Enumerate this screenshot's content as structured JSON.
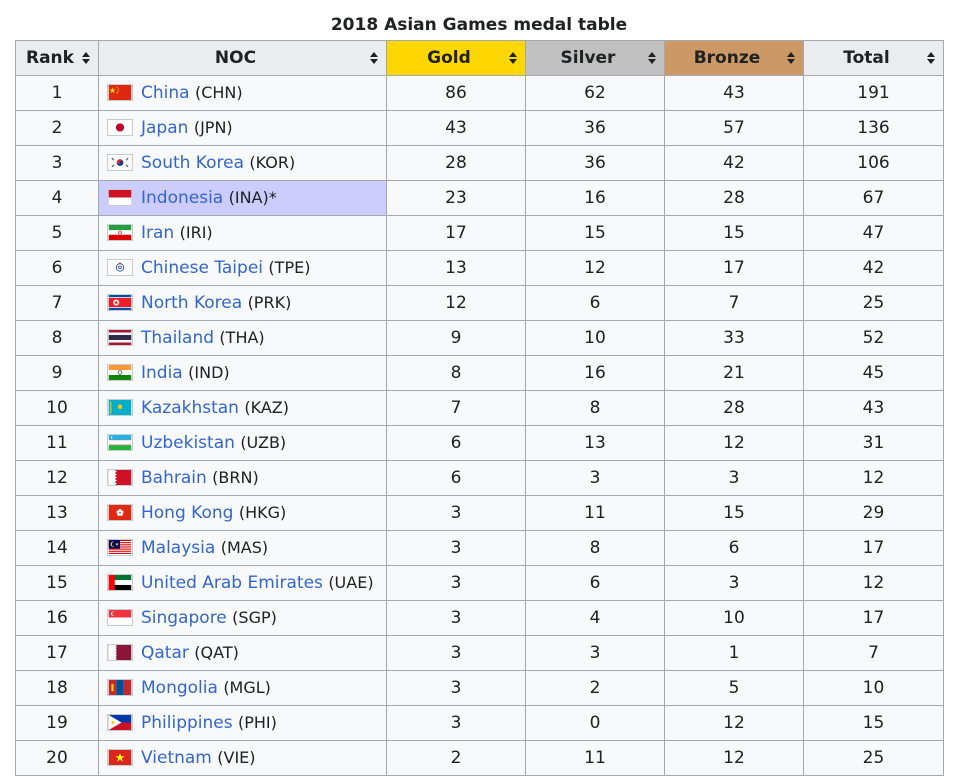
{
  "caption": "2018 Asian Games medal table",
  "headers": {
    "rank": "Rank",
    "noc": "NOC",
    "gold": "Gold",
    "silver": "Silver",
    "bronze": "Bronze",
    "total": "Total"
  },
  "colors": {
    "gold": "#ffd700",
    "silver": "#c0c0c0",
    "bronze": "#cc9966",
    "host_highlight": "#ccccff",
    "link": "#3366cc"
  },
  "rows": [
    {
      "rank": "1",
      "name": "China",
      "code": "(CHN)",
      "gold": "86",
      "silver": "62",
      "bronze": "43",
      "total": "191",
      "flag": "china-flag-icon"
    },
    {
      "rank": "2",
      "name": "Japan",
      "code": "(JPN)",
      "gold": "43",
      "silver": "36",
      "bronze": "57",
      "total": "136",
      "flag": "japan-flag-icon"
    },
    {
      "rank": "3",
      "name": "South Korea",
      "code": "(KOR)",
      "gold": "28",
      "silver": "36",
      "bronze": "42",
      "total": "106",
      "flag": "south-korea-flag-icon"
    },
    {
      "rank": "4",
      "name": "Indonesia",
      "code": "(INA)*",
      "gold": "23",
      "silver": "16",
      "bronze": "28",
      "total": "67",
      "flag": "indonesia-flag-icon",
      "host": true
    },
    {
      "rank": "5",
      "name": "Iran",
      "code": "(IRI)",
      "gold": "17",
      "silver": "15",
      "bronze": "15",
      "total": "47",
      "flag": "iran-flag-icon"
    },
    {
      "rank": "6",
      "name": "Chinese Taipei",
      "code": "(TPE)",
      "gold": "13",
      "silver": "12",
      "bronze": "17",
      "total": "42",
      "flag": "chinese-taipei-flag-icon"
    },
    {
      "rank": "7",
      "name": "North Korea",
      "code": "(PRK)",
      "gold": "12",
      "silver": "6",
      "bronze": "7",
      "total": "25",
      "flag": "north-korea-flag-icon"
    },
    {
      "rank": "8",
      "name": "Thailand",
      "code": "(THA)",
      "gold": "9",
      "silver": "10",
      "bronze": "33",
      "total": "52",
      "flag": "thailand-flag-icon"
    },
    {
      "rank": "9",
      "name": "India",
      "code": "(IND)",
      "gold": "8",
      "silver": "16",
      "bronze": "21",
      "total": "45",
      "flag": "india-flag-icon"
    },
    {
      "rank": "10",
      "name": "Kazakhstan",
      "code": "(KAZ)",
      "gold": "7",
      "silver": "8",
      "bronze": "28",
      "total": "43",
      "flag": "kazakhstan-flag-icon"
    },
    {
      "rank": "11",
      "name": "Uzbekistan",
      "code": "(UZB)",
      "gold": "6",
      "silver": "13",
      "bronze": "12",
      "total": "31",
      "flag": "uzbekistan-flag-icon"
    },
    {
      "rank": "12",
      "name": "Bahrain",
      "code": "(BRN)",
      "gold": "6",
      "silver": "3",
      "bronze": "3",
      "total": "12",
      "flag": "bahrain-flag-icon"
    },
    {
      "rank": "13",
      "name": "Hong Kong",
      "code": "(HKG)",
      "gold": "3",
      "silver": "11",
      "bronze": "15",
      "total": "29",
      "flag": "hong-kong-flag-icon"
    },
    {
      "rank": "14",
      "name": "Malaysia",
      "code": "(MAS)",
      "gold": "3",
      "silver": "8",
      "bronze": "6",
      "total": "17",
      "flag": "malaysia-flag-icon"
    },
    {
      "rank": "15",
      "name": "United Arab Emirates",
      "code": "(UAE)",
      "gold": "3",
      "silver": "6",
      "bronze": "3",
      "total": "12",
      "flag": "uae-flag-icon"
    },
    {
      "rank": "16",
      "name": "Singapore",
      "code": "(SGP)",
      "gold": "3",
      "silver": "4",
      "bronze": "10",
      "total": "17",
      "flag": "singapore-flag-icon"
    },
    {
      "rank": "17",
      "name": "Qatar",
      "code": "(QAT)",
      "gold": "3",
      "silver": "3",
      "bronze": "1",
      "total": "7",
      "flag": "qatar-flag-icon"
    },
    {
      "rank": "18",
      "name": "Mongolia",
      "code": "(MGL)",
      "gold": "3",
      "silver": "2",
      "bronze": "5",
      "total": "10",
      "flag": "mongolia-flag-icon"
    },
    {
      "rank": "19",
      "name": "Philippines",
      "code": "(PHI)",
      "gold": "3",
      "silver": "0",
      "bronze": "12",
      "total": "15",
      "flag": "philippines-flag-icon"
    },
    {
      "rank": "20",
      "name": "Vietnam",
      "code": "(VIE)",
      "gold": "2",
      "silver": "11",
      "bronze": "12",
      "total": "25",
      "flag": "vietnam-flag-icon"
    }
  ]
}
